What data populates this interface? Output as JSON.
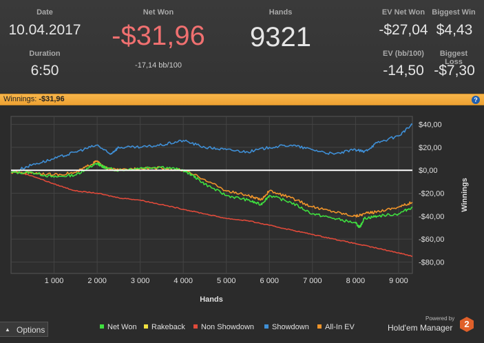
{
  "stats": {
    "date_label": "Date",
    "date_value": "10.04.2017",
    "duration_label": "Duration",
    "duration_value": "6:50",
    "net_won_label": "Net Won",
    "net_won_value": "-$31,96",
    "net_won_sub": "-17,14 bb/100",
    "hands_label": "Hands",
    "hands_value": "9321",
    "ev_net_won_label": "EV Net Won",
    "ev_net_won_value": "-$27,04",
    "biggest_win_label": "Biggest Win",
    "biggest_win_value": "$4,43",
    "ev_bb_label": "EV (bb/100)",
    "ev_bb_value": "-14,50",
    "biggest_loss_label": "Biggest Loss",
    "biggest_loss_value": "-$7,30"
  },
  "bar": {
    "label": "Winnings:",
    "value": "-$31,96",
    "help_icon": "question-icon",
    "help_glyph": "?"
  },
  "options": {
    "arrow": "▲",
    "label": "Options"
  },
  "brand": {
    "powered_by": "Powered by",
    "name": "Hold'em Manager",
    "version": "2"
  },
  "colors": {
    "net_won": "#3fe03f",
    "rakeback": "#f0e040",
    "non_showdown": "#e04a3a",
    "showdown": "#3f8fd6",
    "all_in_ev": "#f0942a",
    "accent_bar": "#eea233",
    "net_won_red": "#f07070"
  },
  "chart_data": {
    "type": "line",
    "xlabel": "Hands",
    "ylabel": "Winnings",
    "xlim": [
      0,
      9321
    ],
    "ylim": [
      -90,
      47
    ],
    "x_ticks": [
      1000,
      2000,
      3000,
      4000,
      5000,
      6000,
      7000,
      8000,
      9000
    ],
    "x_tick_labels": [
      "1 000",
      "2 000",
      "3 000",
      "4 000",
      "5 000",
      "6 000",
      "7 000",
      "8 000",
      "9 000"
    ],
    "y_ticks": [
      40,
      20,
      0,
      -20,
      -40,
      -60,
      -80
    ],
    "y_tick_labels": [
      "$40,00",
      "$20,00",
      "$0,00",
      "-$20,00",
      "-$40,00",
      "-$60,00",
      "-$80,00"
    ],
    "legend_position": "bottom",
    "series": [
      {
        "name": "Net Won",
        "color": "#3fe03f",
        "x": [
          0,
          500,
          1000,
          1500,
          1800,
          2000,
          2100,
          2200,
          2500,
          3000,
          3500,
          4000,
          4200,
          4500,
          5000,
          5500,
          5800,
          6000,
          6500,
          7000,
          7500,
          8000,
          8100,
          8200,
          8500,
          9000,
          9321
        ],
        "y": [
          -2,
          -2,
          -6,
          -4,
          2,
          6,
          4,
          2,
          0,
          2,
          3,
          0,
          -4,
          -12,
          -22,
          -26,
          -30,
          -22,
          -28,
          -38,
          -42,
          -46,
          -50,
          -42,
          -40,
          -38,
          -32
        ]
      },
      {
        "name": "Rakeback",
        "color": "#f0e040",
        "x": [
          0,
          9321
        ],
        "y": [
          0,
          0
        ]
      },
      {
        "name": "Non Showdown",
        "color": "#e04a3a",
        "x": [
          0,
          500,
          1000,
          1500,
          2000,
          2500,
          3000,
          3500,
          4000,
          4500,
          5000,
          5500,
          6000,
          6500,
          7000,
          7500,
          8000,
          8500,
          9000,
          9321
        ],
        "y": [
          0,
          -5,
          -12,
          -18,
          -20,
          -24,
          -26,
          -30,
          -34,
          -38,
          -42,
          -44,
          -48,
          -52,
          -56,
          -60,
          -64,
          -68,
          -72,
          -75
        ]
      },
      {
        "name": "Showdown",
        "color": "#3f8fd6",
        "x": [
          0,
          500,
          1000,
          1500,
          2000,
          2300,
          2500,
          3000,
          3500,
          4000,
          4500,
          5000,
          5500,
          6000,
          6500,
          7000,
          7500,
          8000,
          8200,
          8500,
          9000,
          9321
        ],
        "y": [
          -2,
          5,
          10,
          16,
          22,
          14,
          20,
          20,
          22,
          26,
          20,
          18,
          16,
          20,
          22,
          18,
          14,
          18,
          16,
          24,
          30,
          40
        ]
      },
      {
        "name": "All-In EV",
        "color": "#f0942a",
        "x": [
          0,
          500,
          1000,
          1500,
          1800,
          2000,
          2100,
          2200,
          2500,
          3000,
          3500,
          4000,
          4500,
          5000,
          5500,
          5800,
          6000,
          6500,
          7000,
          7500,
          8000,
          8200,
          8500,
          9000,
          9321
        ],
        "y": [
          -2,
          -2,
          -4,
          -2,
          4,
          8,
          4,
          2,
          0,
          2,
          2,
          0,
          -8,
          -18,
          -22,
          -26,
          -18,
          -24,
          -32,
          -36,
          -40,
          -38,
          -36,
          -32,
          -28
        ]
      }
    ]
  }
}
